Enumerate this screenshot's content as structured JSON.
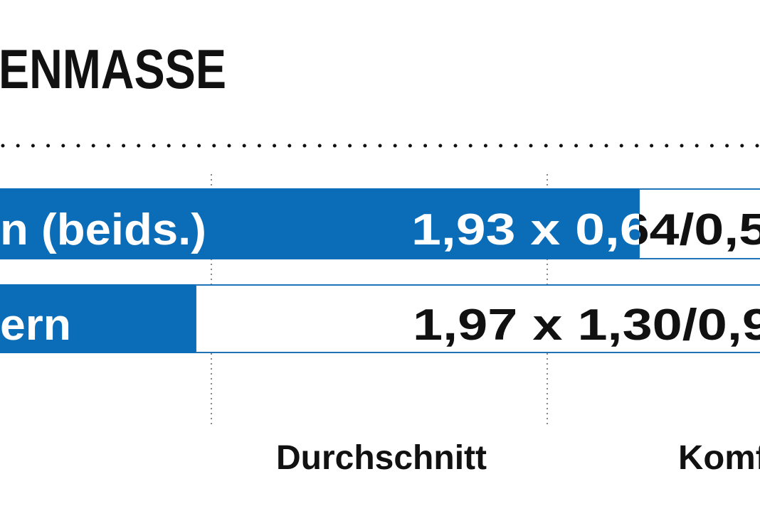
{
  "title": "ENMASSE",
  "rows": [
    {
      "label": "n (beids.)",
      "value": "1,93 x 0,64/0,5"
    },
    {
      "label": "ern",
      "value": "1,97 x 1,30/0,9"
    }
  ],
  "columns": [
    "Durchschnitt",
    "Komf"
  ]
}
